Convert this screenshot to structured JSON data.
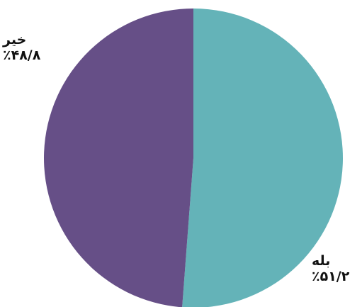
{
  "chart_data": {
    "type": "pie",
    "title": "",
    "slices": [
      {
        "label": "بله",
        "value": 51.2,
        "display": "٪۵۱/۲",
        "color": "#64b3b8"
      },
      {
        "label": "خیر",
        "value": 48.8,
        "display": "٪۴۸/۸",
        "color": "#664f87"
      }
    ],
    "start_angle_deg": 0,
    "direction": "clockwise",
    "legend": "none"
  }
}
